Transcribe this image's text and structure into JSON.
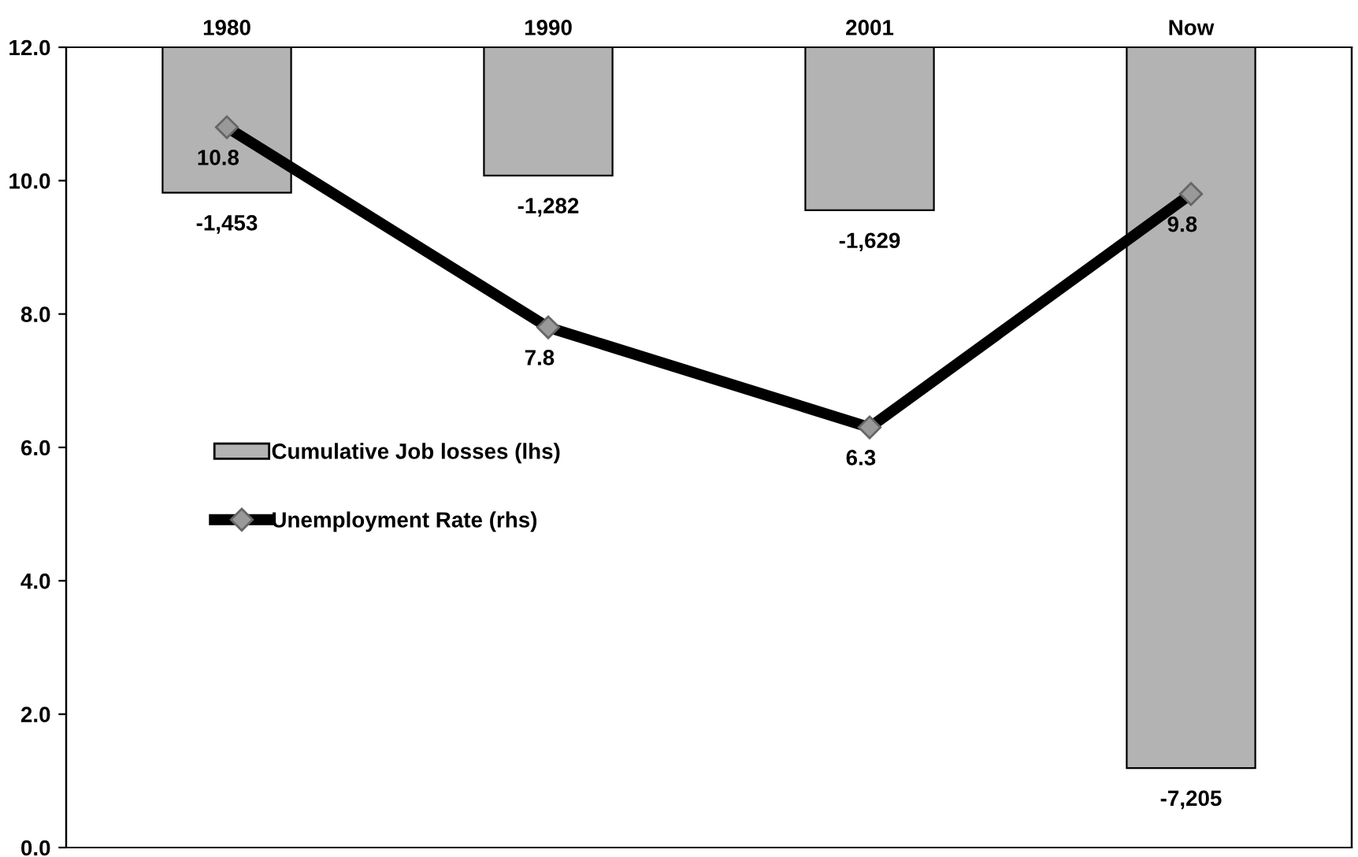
{
  "chart_data": {
    "type": "bar",
    "categories": [
      "1980",
      "1990",
      "2001",
      "Now"
    ],
    "series": [
      {
        "name": "Cumulative Job losses (lhs)",
        "axis": "y2",
        "color": "#b3b3b3",
        "values": [
          -1453,
          -1282,
          -1629,
          -7205
        ],
        "value_labels": [
          "-1,453",
          "-1,282",
          "-1,629",
          "-7,205"
        ]
      },
      {
        "name": "Unemployment Rate (rhs)",
        "type": "line",
        "color": "#000000",
        "values": [
          10.8,
          7.8,
          6.3,
          9.8
        ],
        "value_labels": [
          "10.8",
          "7.8",
          "6.3",
          "9.8"
        ],
        "marker": "diamond",
        "line_style": "solid"
      }
    ],
    "ylim": [
      0,
      12
    ],
    "yticks": [
      {
        "value": 0,
        "label": "0.0"
      },
      {
        "value": 2,
        "label": "2.0"
      },
      {
        "value": 4,
        "label": "4.0"
      },
      {
        "value": 6,
        "label": "6.0"
      },
      {
        "value": 8,
        "label": "8.0"
      },
      {
        "value": 10,
        "label": "10.0"
      },
      {
        "value": 12,
        "label": "12.0"
      }
    ],
    "y2lim": [
      -8000,
      0
    ],
    "grid": false,
    "legend": "center left"
  }
}
